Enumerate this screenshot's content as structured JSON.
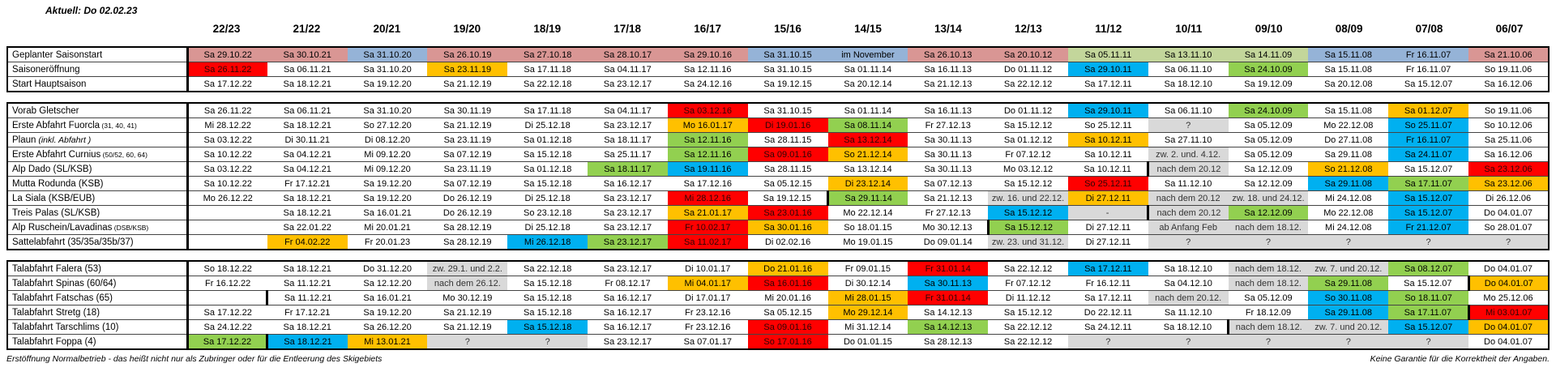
{
  "title": "Aktuell: Do 02.02.23",
  "columns": [
    "22/23",
    "21/22",
    "20/21",
    "19/20",
    "18/19",
    "17/18",
    "16/17",
    "15/16",
    "14/15",
    "13/14",
    "12/13",
    "11/12",
    "10/11",
    "09/10",
    "08/09",
    "07/08",
    "06/07"
  ],
  "colors": {
    "rose": "#d99694",
    "blue": "#95b3d7",
    "olive": "#c3d69b",
    "red": "#ff0000",
    "orange": "#ffc000",
    "green": "#92d050",
    "cyan": "#00b0f0",
    "gray": "#d9d9d9"
  },
  "blocks": [
    {
      "name": "saison",
      "rows": [
        {
          "label": "Geplanter Saisonstart",
          "cells": [
            [
              "Sa 29.10.22",
              "rose"
            ],
            [
              "Sa 30.10.21",
              "rose"
            ],
            [
              "Sa 31.10.20",
              "blue"
            ],
            [
              "Sa 26.10.19",
              "rose"
            ],
            [
              "Sa 27.10.18",
              "rose"
            ],
            [
              "Sa 28.10.17",
              "rose"
            ],
            [
              "Sa 29.10.16",
              "rose"
            ],
            [
              "Sa 31.10.15",
              "blue"
            ],
            [
              "im November",
              "blue"
            ],
            [
              "Sa 26.10.13",
              "rose"
            ],
            [
              "Sa 20.10.12",
              "rose"
            ],
            [
              "Sa 05.11.11",
              "olive"
            ],
            [
              "Sa 13.11.10",
              "olive"
            ],
            [
              "Sa 14.11.09",
              "olive"
            ],
            [
              "Sa 15.11.08",
              "blue"
            ],
            [
              "Fr 16.11.07",
              "blue"
            ],
            [
              "Sa 21.10.06",
              "rose"
            ]
          ]
        },
        {
          "label": "Saisoneröffnung",
          "cells": [
            [
              "Sa 26.11.22",
              "red"
            ],
            "Sa 06.11.21",
            "Sa 31.10.20",
            [
              "Sa 23.11.19",
              "orange"
            ],
            "Sa 17.11.18",
            "Sa 04.11.17",
            "Sa 12.11.16",
            "Sa 31.10.15",
            "Sa 01.11.14",
            "Sa 16.11.13",
            "Do 01.11.12",
            [
              "Sa 29.10.11",
              "cyan"
            ],
            "Sa 06.11.10",
            [
              "Sa 24.10.09",
              "green"
            ],
            "Sa 15.11.08",
            "Fr 16.11.07",
            "So 19.11.06"
          ]
        },
        {
          "label": "Start Hauptsaison",
          "cells": [
            "Sa 17.12.22",
            "Sa 18.12.21",
            "Sa 19.12.20",
            "Sa 21.12.19",
            "Sa 22.12.18",
            "Sa 23.12.17",
            "Sa 24.12.16",
            "Sa 19.12.15",
            "Sa 20.12.14",
            "Sa 21.12.13",
            "Sa 22.12.12",
            "Sa 17.12.11",
            "Sa 18.12.10",
            "Sa 19.12.09",
            "Sa 20.12.08",
            "Sa 15.12.07",
            "Sa 16.12.06"
          ]
        }
      ]
    },
    {
      "name": "anlagen",
      "rows": [
        {
          "label": "Vorab Gletscher",
          "cells": [
            "Sa 26.11.22",
            "Sa 06.11.21",
            "Sa 31.10.20",
            "Sa 30.11.19",
            "Sa 17.11.18",
            "Sa 04.11.17",
            [
              "Sa 03.12.16",
              "red"
            ],
            "Sa 31.10.15",
            "Sa 01.11.14",
            "Sa 16.11.13",
            "Do 01.11.12",
            [
              "Sa 29.10.11",
              "cyan"
            ],
            "Sa 06.11.10",
            [
              "Sa 24.10.09",
              "green"
            ],
            "Sa 15.11.08",
            [
              "Sa 01.12.07",
              "orange"
            ],
            "So 19.11.06"
          ]
        },
        {
          "label": "Erste Abfahrt Fuorcla",
          "sub": "(31, 40, 41)",
          "cells": [
            "Mi 28.12.22",
            "Sa 18.12.21",
            "So 27.12.20",
            "Sa 21.12.19",
            "Di 25.12.18",
            "Sa 23.12.17",
            [
              "Mo 16.01.17",
              "orange"
            ],
            [
              "Di 19.01.16",
              "red"
            ],
            [
              "Sa 08.11.14",
              "green"
            ],
            "Fr 27.12.13",
            "Sa 15.12.12",
            "So 25.12.11",
            [
              "?",
              "gray"
            ],
            "Sa 05.12.09",
            "Mo 22.12.08",
            [
              "So 25.11.07",
              "cyan"
            ],
            "So 10.12.06"
          ]
        },
        {
          "label": "Plaun",
          "sub": "(inkl. Abfahrt )",
          "sub_italic": true,
          "cells": [
            "Sa 03.12.22",
            "Di 30.11.21",
            "Di 08.12.20",
            "Sa 23.11.19",
            "Sa 01.12.18",
            "Sa 18.11.17",
            [
              "Sa 12.11.16",
              "green"
            ],
            "Sa 28.11.15",
            [
              "Sa 13.12.14",
              "red"
            ],
            "Sa 30.11.13",
            "Sa 01.12.12",
            [
              "Sa 10.12.11",
              "orange"
            ],
            "Sa 27.11.10",
            "Sa 05.12.09",
            "Do 27.11.08",
            [
              "Fr 16.11.07",
              "cyan"
            ],
            "Sa 25.11.06"
          ]
        },
        {
          "label": "Erste Abfahrt Curnius",
          "sub": "(50/52, 60, 64)",
          "cells": [
            "Sa 10.12.22",
            "Sa 04.12.21",
            "Mi 09.12.20",
            "Sa 07.12.19",
            "Sa 15.12.18",
            "Sa 25.11.17",
            [
              "Sa 12.11.16",
              "green"
            ],
            [
              "Sa 09.01.16",
              "red"
            ],
            [
              "So 21.12.14",
              "orange"
            ],
            "Sa 30.11.13",
            "Fr 07.12.12",
            "Sa 10.12.11",
            [
              "zw. 2. und. 4.12.",
              "gray"
            ],
            "Sa 05.12.09",
            "Sa 29.11.08",
            [
              "Sa 24.11.07",
              "cyan"
            ],
            "Sa 16.12.06"
          ]
        },
        {
          "label": "Alp Dado (SL/KSB)",
          "cells": [
            "Sa 03.12.22",
            "Sa 04.12.21",
            "Mi 09.12.20",
            "Sa 23.11.19",
            "Sa 01.12.18",
            [
              "Sa 18.11.17",
              "green"
            ],
            [
              "Sa 19.11.16",
              "cyan"
            ],
            "Sa 28.11.15",
            "Sa 13.12.14",
            "Sa 30.11.13",
            "Mo 03.12.12",
            [
              "Sa 10.12.11",
              "",
              "R"
            ],
            [
              "nach dem 20.12",
              "gray"
            ],
            "Sa 12.12.09",
            [
              "So 21.12.08",
              "orange"
            ],
            "Sa 15.12.07",
            [
              "Sa 23.12.06",
              "red"
            ]
          ]
        },
        {
          "label": "Mutta Rodunda (KSB)",
          "cells": [
            "Sa 10.12.22",
            "Fr 17.12.21",
            "Sa 19.12.20",
            "Sa 07.12.19",
            "Sa 15.12.18",
            "Sa 16.12.17",
            "Sa 17.12.16",
            "Sa 05.12.15",
            [
              "Di 23.12.14",
              "orange"
            ],
            "Sa 07.12.13",
            "Sa 15.12.12",
            [
              "So 25.12.11",
              "red"
            ],
            "Sa 11.12.10",
            "Sa 12.12.09",
            [
              "Sa 29.11.08",
              "cyan"
            ],
            [
              "Sa 17.11.07",
              "green"
            ],
            [
              "Sa 23.12.06",
              "orange"
            ]
          ]
        },
        {
          "label": "La Siala (KSB/EUB)",
          "cells": [
            "Mo 26.12.22",
            "Sa 18.12.21",
            "Sa 19.12.20",
            "Do 26.12.19",
            "Di 25.12.18",
            "Sa 23.12.17",
            [
              "Mi 28.12.16",
              "red"
            ],
            "Sa 19.12.15",
            [
              "Sa 29.11.14",
              "green",
              "L"
            ],
            "Sa 21.12.13",
            [
              "zw. 16. und 22.12.",
              "gray"
            ],
            [
              "Di 27.12.11",
              "orange"
            ],
            [
              "nach dem 20.12",
              "gray"
            ],
            [
              "zw. 18. und 24.12.",
              "gray"
            ],
            "Mi 24.12.08",
            [
              "Sa 15.12.07",
              "cyan"
            ],
            "Di 26.12.06"
          ]
        },
        {
          "label": "Treis Palas (SL/KSB)",
          "cells": [
            "",
            "Sa 18.12.21",
            "Sa 16.01.21",
            "Do 26.12.19",
            "So 23.12.18",
            "Sa 23.12.17",
            [
              "Sa 21.01.17",
              "orange"
            ],
            [
              "Sa 23.01.16",
              "red"
            ],
            "Mo 22.12.14",
            "Fr 27.12.13",
            [
              "Sa 15.12.12",
              "cyan"
            ],
            [
              "-",
              "gray",
              "R"
            ],
            [
              "nach dem 20.12",
              "gray"
            ],
            [
              "Sa 12.12.09",
              "green"
            ],
            "Mo 22.12.08",
            [
              "Sa 15.12.07",
              "cyan"
            ],
            "Do 04.01.07"
          ]
        },
        {
          "label": "Alp Ruschein/Lavadinas",
          "sub": "(DSB/KSB)",
          "cells": [
            "",
            "Sa 22.01.22",
            "Mi 20.01.21",
            "Sa 28.12.19",
            "Di 25.12.18",
            "Sa 23.12.17",
            [
              "Fr 10.02.17",
              "red"
            ],
            [
              "Sa 30.01.16",
              "orange"
            ],
            "So 18.01.15",
            "Mo 30.12.13",
            [
              "Sa 15.12.12",
              "green",
              "L"
            ],
            "Di 27.12.11",
            [
              "ab Anfang Feb",
              "gray"
            ],
            [
              "nach dem 18.12.",
              "gray"
            ],
            "Mi 24.12.08",
            [
              "Fr 21.12.07",
              "cyan"
            ],
            "So 28.01.07"
          ]
        },
        {
          "label": "Sattelabfahrt (35/35a/35b/37)",
          "cells": [
            "",
            [
              "Fr 04.02.22",
              "orange"
            ],
            "Fr 20.01.23",
            "Sa 28.12.19",
            [
              "Mi 26.12.18",
              "cyan"
            ],
            [
              "Sa 23.12.17",
              "green"
            ],
            [
              "Sa 11.02.17",
              "red"
            ],
            "Di 02.02.16",
            "Mo 19.01.15",
            "Do 09.01.14",
            [
              "zw. 23. und 31.12.",
              "gray"
            ],
            "Di 27.12.11",
            [
              "?",
              "gray"
            ],
            [
              "?",
              "gray"
            ],
            [
              "?",
              "gray"
            ],
            [
              "?",
              "gray"
            ],
            [
              "?",
              "gray"
            ]
          ]
        }
      ]
    },
    {
      "name": "talabfahrten",
      "rows": [
        {
          "label": "Talabfahrt Falera (53)",
          "cells": [
            "So 18.12.22",
            "Sa 18.12.21",
            "Do 31.12.20",
            [
              "zw. 29.1. und 2.2.",
              "gray"
            ],
            "Sa 22.12.18",
            "Sa 23.12.17",
            "Di 10.01.17",
            [
              "Do 21.01.16",
              "orange"
            ],
            "Fr 09.01.15",
            [
              "Fr 31.01.14",
              "red"
            ],
            "Sa 22.12.12",
            [
              "Sa 17.12.11",
              "cyan"
            ],
            "Sa 18.12.10",
            [
              "nach dem 18.12.",
              "gray"
            ],
            [
              "zw. 7. und 20.12.",
              "gray"
            ],
            [
              "Sa 08.12.07",
              "green"
            ],
            "Do 04.01.07"
          ]
        },
        {
          "label": "Talabfahrt Spinas (60/64)",
          "cells": [
            "Fr 16.12.22",
            "Sa 11.12.21",
            "Sa 12.12.20",
            [
              "nach dem 26.12.",
              "gray"
            ],
            "Sa 15.12.18",
            "Fr 08.12.17",
            [
              "Mi 04.01.17",
              "orange"
            ],
            [
              "Sa 16.01.16",
              "red"
            ],
            "Di 30.12.14",
            [
              "Sa 30.11.13",
              "cyan"
            ],
            "Fr 07.12.12",
            "Fr 16.12.11",
            "Sa 04.12.10",
            [
              "nach dem 18.12.",
              "gray"
            ],
            [
              "Sa 29.11.08",
              "green"
            ],
            "Sa 15.12.07",
            [
              "Do 04.01.07",
              "orange",
              "L"
            ]
          ]
        },
        {
          "label": "Talabfahrt Fatschas (65)",
          "cells": [
            [
              "",
              "",
              "R"
            ],
            "Sa 11.12.21",
            "Sa 16.01.21",
            "Mo 30.12.19",
            "Sa 15.12.18",
            "Sa 16.12.17",
            "Di 17.01.17",
            "Mi 20.01.16",
            [
              "Mi 28.01.15",
              "orange"
            ],
            [
              "Fr 31.01.14",
              "red"
            ],
            "Di 11.12.12",
            "Sa 17.12.11",
            [
              "nach dem 20.12.",
              "gray"
            ],
            "Sa 05.12.09",
            [
              "So 30.11.08",
              "cyan"
            ],
            [
              "So 18.11.07",
              "green"
            ],
            "Mo 25.12.06"
          ]
        },
        {
          "label": "Talabfahrt Stretg (18)",
          "cells": [
            "Sa 17.12.22",
            "Fr 17.12.21",
            "Sa 19.12.20",
            "Sa 21.12.19",
            "Sa 15.12.18",
            "Sa 16.12.17",
            "Fr 23.12.16",
            "Sa 05.12.15",
            [
              "Mo 29.12.14",
              "orange"
            ],
            "Sa 14.12.13",
            "Sa 15.12.12",
            "Do 22.12.11",
            "Sa 11.12.10",
            "Fr 18.12.09",
            [
              "Sa 29.11.08",
              "cyan"
            ],
            [
              "Sa 17.11.07",
              "green"
            ],
            [
              "Mi 03.01.07",
              "red",
              "L"
            ]
          ]
        },
        {
          "label": "Talabfahrt Tarschlims (10)",
          "cells": [
            "Sa 24.12.22",
            "Sa 18.12.21",
            "Sa 26.12.20",
            "Sa 21.12.19",
            [
              "Sa 15.12.18",
              "cyan"
            ],
            "Sa 16.12.17",
            "Fr 23.12.16",
            [
              "Sa 09.01.16",
              "red"
            ],
            "Mi 31.12.14",
            [
              "Sa 14.12.13",
              "green"
            ],
            "Sa 22.12.12",
            "Sa 24.12.11",
            [
              "Sa 18.12.10",
              "",
              "R"
            ],
            [
              "nach dem 18.12.",
              "gray"
            ],
            [
              "zw. 7. und 20.12.",
              "gray"
            ],
            [
              "Sa 15.12.07",
              "cyan"
            ],
            [
              "Do 04.01.07",
              "orange"
            ]
          ]
        },
        {
          "label": "Talabfahrt Foppa (4)",
          "cells": [
            [
              "Sa 17.12.22",
              "green"
            ],
            [
              "Sa 18.12.21",
              "cyan",
              "L"
            ],
            [
              "Mi 13.01.21",
              "orange"
            ],
            [
              "?",
              "gray"
            ],
            [
              "?",
              "gray"
            ],
            "Sa 23.12.17",
            "Sa 07.01.17",
            [
              "So 17.01.16",
              "red"
            ],
            "Do 01.01.15",
            "Sa 28.12.13",
            "Sa 22.12.12",
            [
              "?",
              "gray"
            ],
            [
              "?",
              "gray"
            ],
            [
              "?",
              "gray"
            ],
            [
              "?",
              "gray"
            ],
            [
              "?",
              "gray"
            ],
            "Do 04.01.07"
          ]
        }
      ]
    }
  ],
  "footnote_left": "Erstöffnung Normalbetrieb - das heißt nicht nur als Zubringer oder für die Entleerung des Skigebiets",
  "footnote_right": "Keine Garantie für die Korrektheit der Angaben."
}
